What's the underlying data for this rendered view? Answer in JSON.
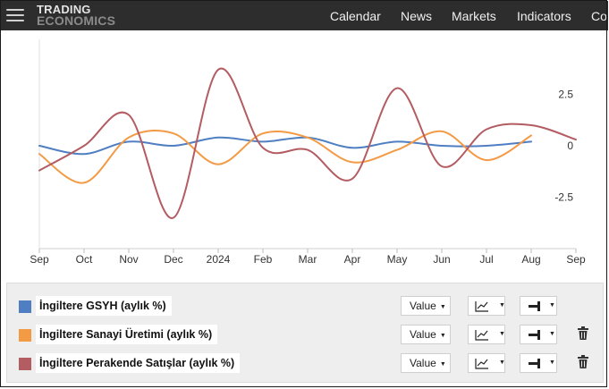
{
  "header": {
    "logo_line1": "TRADING",
    "logo_line2": "ECONOMICS",
    "nav": [
      "Calendar",
      "News",
      "Markets",
      "Indicators",
      "Co"
    ]
  },
  "chart_data": {
    "type": "line",
    "x": [
      "Sep",
      "Oct",
      "Nov",
      "Dec",
      "2024",
      "Feb",
      "Mar",
      "Apr",
      "May",
      "Jun",
      "Jul",
      "Aug",
      "Sep"
    ],
    "y_ticks": [
      "2.5",
      "0",
      "-2.5"
    ],
    "ylim": [
      -5,
      5
    ],
    "grid": false,
    "series": [
      {
        "name": "İngiltere GSYH (aylık %)",
        "color": "#4f7fc2",
        "values": [
          0.0,
          -0.4,
          0.2,
          0.0,
          0.4,
          0.2,
          0.4,
          -0.1,
          0.2,
          0.0,
          0.0,
          0.2,
          null
        ]
      },
      {
        "name": "İngiltere Sanayi Üretimi (aylık %)",
        "color": "#f39a45",
        "values": [
          -0.4,
          -1.8,
          0.4,
          0.6,
          -0.9,
          0.6,
          0.4,
          -0.8,
          -0.2,
          0.7,
          -0.7,
          0.5,
          null
        ]
      },
      {
        "name": "İngiltere Perakende Satışlar (aylık %)",
        "color": "#b35c62",
        "values": [
          -1.2,
          0.0,
          1.5,
          -3.5,
          3.7,
          -0.1,
          -0.2,
          -1.6,
          2.8,
          -1.0,
          0.8,
          1.0,
          0.3
        ]
      }
    ]
  },
  "legend": {
    "value_label": "Value",
    "rows": [
      {
        "name": "İngiltere GSYH (aylık %)",
        "color": "#4f7fc2",
        "deletable": false
      },
      {
        "name": "İngiltere Sanayi Üretimi (aylık %)",
        "color": "#f39a45",
        "deletable": true
      },
      {
        "name": "İngiltere Perakende Satışlar (aylık %)",
        "color": "#b35c62",
        "deletable": true
      }
    ]
  }
}
